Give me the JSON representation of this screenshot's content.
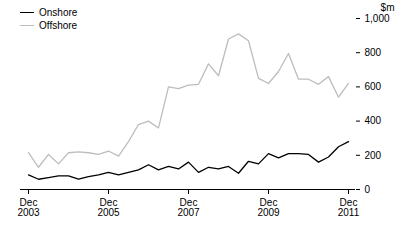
{
  "chart_data": {
    "type": "line",
    "categories": [
      "Dec 2003",
      null,
      null,
      null,
      null,
      null,
      null,
      null,
      "Dec 2005",
      null,
      null,
      null,
      null,
      null,
      null,
      null,
      "Dec 2007",
      null,
      null,
      null,
      null,
      null,
      null,
      null,
      "Dec 2009",
      null,
      null,
      null,
      null,
      null,
      null,
      null,
      "Dec 2011"
    ],
    "series": [
      {
        "name": "Onshore",
        "color": "#000000",
        "values": [
          85,
          60,
          70,
          80,
          80,
          60,
          75,
          85,
          100,
          85,
          100,
          115,
          145,
          115,
          135,
          120,
          160,
          100,
          130,
          120,
          135,
          95,
          165,
          150,
          210,
          185,
          210,
          210,
          205,
          160,
          190,
          250,
          280
        ]
      },
      {
        "name": "Offshore",
        "color": "#bdbdbd",
        "values": [
          215,
          130,
          205,
          150,
          215,
          220,
          215,
          205,
          225,
          195,
          280,
          380,
          400,
          360,
          600,
          590,
          610,
          615,
          735,
          665,
          880,
          910,
          870,
          650,
          620,
          690,
          795,
          645,
          645,
          615,
          660,
          540,
          620
        ]
      }
    ],
    "y_label": "$m",
    "ylim": [
      0,
      1000
    ],
    "yticks": [
      0,
      200,
      400,
      600,
      800,
      1000
    ],
    "legend": "top-left",
    "grid": false
  }
}
